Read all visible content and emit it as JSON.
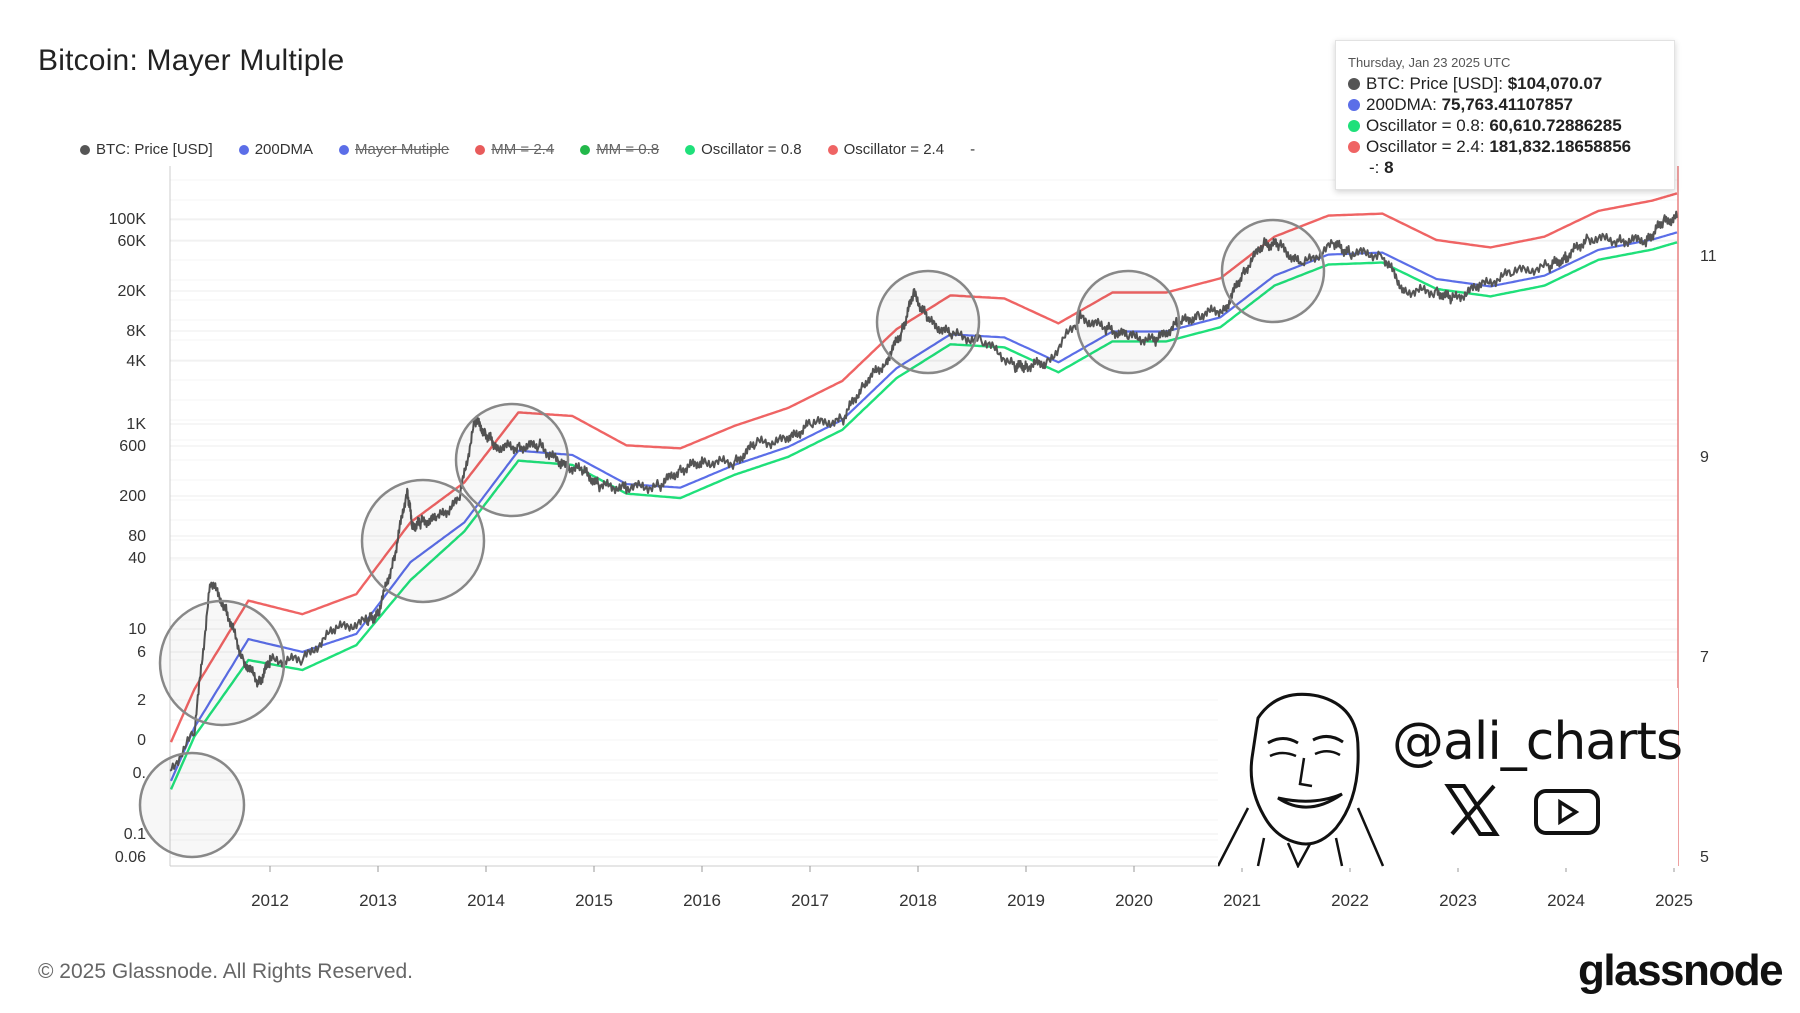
{
  "title": "Bitcoin: Mayer Multiple",
  "legend": [
    {
      "label": "BTC: Price [USD]",
      "color": "#555555",
      "struck": false
    },
    {
      "label": "200DMA",
      "color": "#5b6ee8",
      "struck": false
    },
    {
      "label": "Mayer Mutiple",
      "color": "#5b6ee8",
      "struck": true
    },
    {
      "label": "MM = 2.4",
      "color": "#e85b5b",
      "struck": true
    },
    {
      "label": "MM = 0.8",
      "color": "#22b84a",
      "struck": true
    },
    {
      "label": "Oscillator = 0.8",
      "color": "#1fe07a",
      "struck": false
    },
    {
      "label": "Oscillator = 2.4",
      "color": "#ef6464",
      "struck": false
    },
    {
      "label": "-",
      "color": "",
      "struck": false
    }
  ],
  "tooltip": {
    "date": "Thursday, Jan 23 2025 UTC",
    "rows": [
      {
        "name": "BTC: Price [USD]",
        "value": "$104,070.07",
        "color": "#555555"
      },
      {
        "name": "200DMA",
        "value": "75,763.41107857",
        "color": "#5b6ee8"
      },
      {
        "name": "Oscillator = 0.8",
        "value": "60,610.72886285",
        "color": "#1fe07a"
      },
      {
        "name": "Oscillator = 2.4",
        "value": "181,832.18658856",
        "color": "#ef6464"
      }
    ],
    "extra_name": "-",
    "extra_value": "8"
  },
  "watermark": {
    "handle": "@ali_charts"
  },
  "footer": {
    "copyright": "© 2025 Glassnode. All Rights Reserved.",
    "brand": "glassnode"
  },
  "chart_data": {
    "type": "line",
    "title": "Bitcoin: Mayer Multiple",
    "y_scale": "log",
    "y_ticks": [
      "100K",
      "60K",
      "20K",
      "8K",
      "4K",
      "1K",
      "600",
      "200",
      "80",
      "40",
      "10",
      "6",
      "2",
      "0",
      "0.",
      "0.1",
      "0.06"
    ],
    "y_right_ticks": [
      "11",
      "9",
      "7",
      "5"
    ],
    "x_ticks": [
      "2012",
      "2013",
      "2014",
      "2015",
      "2016",
      "2017",
      "2018",
      "2019",
      "2020",
      "2021",
      "2022",
      "2023",
      "2024",
      "2025"
    ],
    "colors": {
      "price": "#555555",
      "dma": "#5b6ee8",
      "low": "#1fe07a",
      "high": "#ef6464"
    },
    "series": [
      {
        "name": "BTC: Price [USD]",
        "x": [
          2010.65,
          2010.8,
          2011.0,
          2011.3,
          2011.45,
          2011.6,
          2011.75,
          2011.9,
          2012.0,
          2012.3,
          2012.6,
          2012.9,
          2013.0,
          2013.15,
          2013.27,
          2013.32,
          2013.4,
          2013.55,
          2013.75,
          2013.9,
          2014.0,
          2014.1,
          2014.3,
          2014.5,
          2014.7,
          2014.9,
          2015.05,
          2015.3,
          2015.6,
          2015.8,
          2016.0,
          2016.3,
          2016.5,
          2016.8,
          2017.0,
          2017.3,
          2017.5,
          2017.7,
          2017.85,
          2017.96,
          2018.1,
          2018.3,
          2018.6,
          2018.9,
          2019.0,
          2019.2,
          2019.5,
          2019.75,
          2019.95,
          2020.2,
          2020.4,
          2020.6,
          2020.85,
          2021.0,
          2021.2,
          2021.35,
          2021.55,
          2021.85,
          2022.0,
          2022.3,
          2022.5,
          2022.8,
          2022.95,
          2023.2,
          2023.5,
          2023.85,
          2024.0,
          2024.2,
          2024.5,
          2024.75,
          2024.9,
          2025.06
        ],
        "values": [
          0.06,
          0.3,
          0.3,
          1,
          30,
          15,
          5,
          3,
          5,
          5,
          10,
          12,
          14,
          50,
          230,
          100,
          110,
          120,
          180,
          1100,
          800,
          600,
          600,
          620,
          400,
          350,
          250,
          240,
          250,
          360,
          430,
          420,
          650,
          700,
          1000,
          1100,
          2500,
          4000,
          8000,
          19000,
          10000,
          7500,
          6500,
          3700,
          3700,
          4000,
          11000,
          8500,
          7200,
          6500,
          9500,
          11500,
          13500,
          29000,
          58000,
          55000,
          35000,
          57000,
          47000,
          45000,
          20000,
          19500,
          16500,
          22000,
          30000,
          35000,
          42000,
          65000,
          62000,
          62000,
          95000,
          104070
        ]
      },
      {
        "name": "200DMA",
        "x": [
          2010.9,
          2011.3,
          2011.8,
          2012.3,
          2012.8,
          2013.3,
          2013.8,
          2014.3,
          2014.8,
          2015.3,
          2015.8,
          2016.3,
          2016.8,
          2017.3,
          2017.8,
          2018.3,
          2018.8,
          2019.3,
          2019.8,
          2020.3,
          2020.8,
          2021.3,
          2021.8,
          2022.3,
          2022.8,
          2023.3,
          2023.8,
          2024.3,
          2024.8,
          2025.06
        ],
        "values": [
          0.12,
          1.1,
          8,
          6,
          9,
          45,
          110,
          550,
          500,
          260,
          240,
          400,
          600,
          1100,
          3500,
          7500,
          7000,
          4000,
          8000,
          8000,
          11000,
          28000,
          45000,
          47000,
          26000,
          22000,
          28000,
          50000,
          63000,
          75763
        ]
      },
      {
        "name": "Oscillator = 0.8",
        "x": [
          2010.9,
          2011.3,
          2011.8,
          2012.3,
          2012.8,
          2013.3,
          2013.8,
          2014.3,
          2014.8,
          2015.3,
          2015.8,
          2016.3,
          2016.8,
          2017.3,
          2017.8,
          2018.3,
          2018.8,
          2019.3,
          2019.8,
          2020.3,
          2020.8,
          2021.3,
          2021.8,
          2022.3,
          2022.8,
          2023.3,
          2023.8,
          2024.3,
          2024.8,
          2025.06
        ],
        "values": [
          0.1,
          0.9,
          5,
          4,
          7,
          30,
          90,
          440,
          400,
          210,
          190,
          320,
          480,
          880,
          2800,
          6000,
          5600,
          3200,
          6400,
          6400,
          8800,
          22400,
          36000,
          37600,
          20800,
          17600,
          22400,
          40000,
          50400,
          60611
        ]
      },
      {
        "name": "Oscillator = 2.4",
        "x": [
          2010.9,
          2011.3,
          2011.8,
          2012.3,
          2012.8,
          2013.3,
          2013.8,
          2014.3,
          2014.8,
          2015.3,
          2015.8,
          2016.3,
          2016.8,
          2017.3,
          2017.8,
          2018.3,
          2018.8,
          2019.3,
          2019.8,
          2020.3,
          2020.8,
          2021.3,
          2021.8,
          2022.3,
          2022.8,
          2023.3,
          2023.8,
          2024.3,
          2024.8,
          2025.06
        ],
        "values": [
          0.29,
          2.6,
          19,
          14,
          22,
          110,
          270,
          1300,
          1200,
          620,
          580,
          960,
          1440,
          2640,
          8400,
          18000,
          16800,
          9600,
          19200,
          19200,
          26400,
          67200,
          108000,
          112800,
          62400,
          52800,
          67200,
          120000,
          151200,
          181832
        ]
      }
    ]
  }
}
